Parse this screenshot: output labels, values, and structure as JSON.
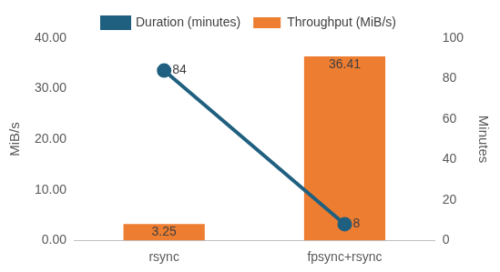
{
  "chart_data": {
    "type": "bar",
    "categories": [
      "rsync",
      "fpsync+rsync"
    ],
    "series": [
      {
        "name": "Throughput (MiB/s)",
        "type": "bar",
        "color": "#ED7D31",
        "values": [
          3.25,
          36.41
        ]
      },
      {
        "name": "Duration (minutes)",
        "type": "line",
        "color": "#1F5F7F",
        "marker": "circle",
        "axis": "y2",
        "values": [
          84,
          8
        ]
      }
    ],
    "y_label": "MiB/s",
    "y2_label": "Minutes",
    "ylim": [
      0,
      40
    ],
    "yticks": [
      {
        "value": 0,
        "label": "0.00"
      },
      {
        "value": 10,
        "label": "10.00"
      },
      {
        "value": 20,
        "label": "20.00"
      },
      {
        "value": 30,
        "label": "30.00"
      },
      {
        "value": 40,
        "label": "40.00"
      }
    ],
    "y2lim": [
      0,
      100
    ],
    "y2ticks": [
      0,
      20,
      40,
      60,
      80,
      100
    ],
    "grid": false,
    "legend": "top",
    "data_labels": true
  }
}
